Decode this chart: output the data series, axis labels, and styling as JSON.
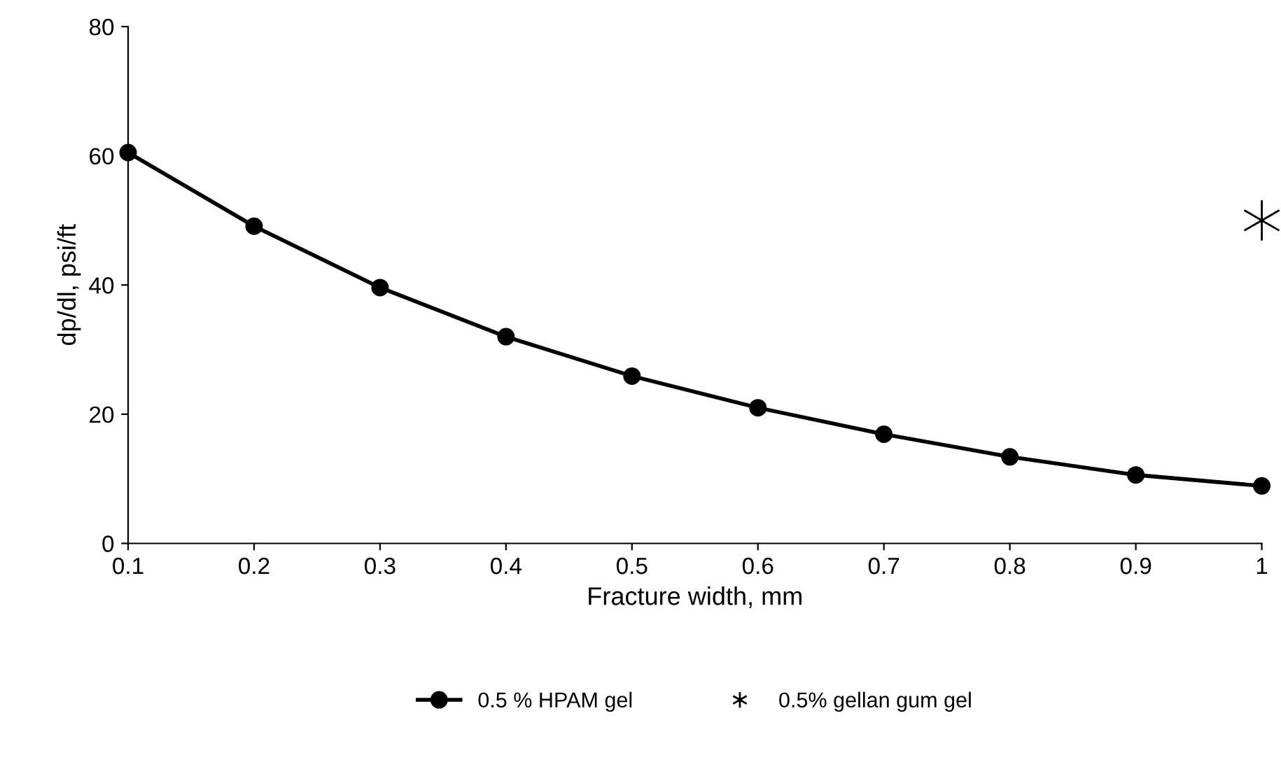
{
  "chart_data": {
    "type": "line",
    "xlabel": "Fracture width, mm",
    "ylabel": "dp/dl, psi/ft",
    "xlim": [
      0.1,
      1
    ],
    "xticks": [
      0.1,
      0.2,
      0.3,
      0.4,
      0.5,
      0.6,
      0.7,
      0.8,
      0.9,
      1
    ],
    "ylim": [
      0,
      80
    ],
    "yticks": [
      0,
      20,
      40,
      60,
      80
    ],
    "grid": false,
    "legend": "bottom",
    "series": [
      {
        "name": "0.5 % HPAM gel",
        "color": "#000000",
        "marker": "circle",
        "line_style": "solid",
        "x": [
          0.1,
          0.2,
          0.3,
          0.4,
          0.5,
          0.6,
          0.7,
          0.8,
          0.9,
          1
        ],
        "values": [
          60.5,
          49.1,
          39.6,
          32.0,
          25.9,
          21.0,
          16.9,
          13.4,
          10.6,
          8.9
        ]
      },
      {
        "name": "0.5% gellan gum gel",
        "color": "#000000",
        "type": "scatter",
        "marker": "cross",
        "x": [
          1
        ],
        "values": [
          50
        ]
      }
    ]
  }
}
